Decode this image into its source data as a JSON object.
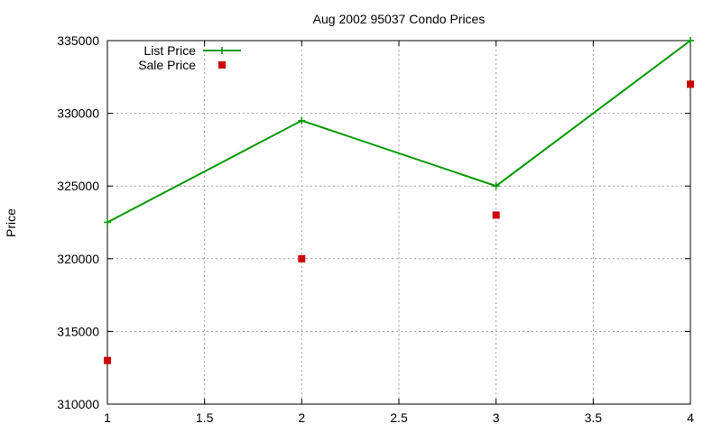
{
  "chart_data": {
    "type": "line",
    "title": "Aug 2002 95037 Condo Prices",
    "xlabel": "",
    "ylabel": "Price",
    "xlim": [
      1,
      4
    ],
    "ylim": [
      310000,
      335000
    ],
    "xticks": [
      "1",
      "1.5",
      "2",
      "2.5",
      "3",
      "3.5",
      "4"
    ],
    "yticks": [
      "310000",
      "315000",
      "320000",
      "325000",
      "330000",
      "335000"
    ],
    "grid": true,
    "legend_position": "top-left",
    "series": [
      {
        "name": "List Price",
        "style": "lines+points",
        "marker": "plus",
        "color": "#009900",
        "x": [
          1,
          2,
          3,
          4
        ],
        "y": [
          322500,
          329500,
          325000,
          335000
        ]
      },
      {
        "name": "Sale Price",
        "style": "points",
        "marker": "square",
        "color": "#cc0000",
        "x": [
          1,
          2,
          3,
          4
        ],
        "y": [
          313000,
          320000,
          323000,
          332000
        ]
      }
    ]
  }
}
